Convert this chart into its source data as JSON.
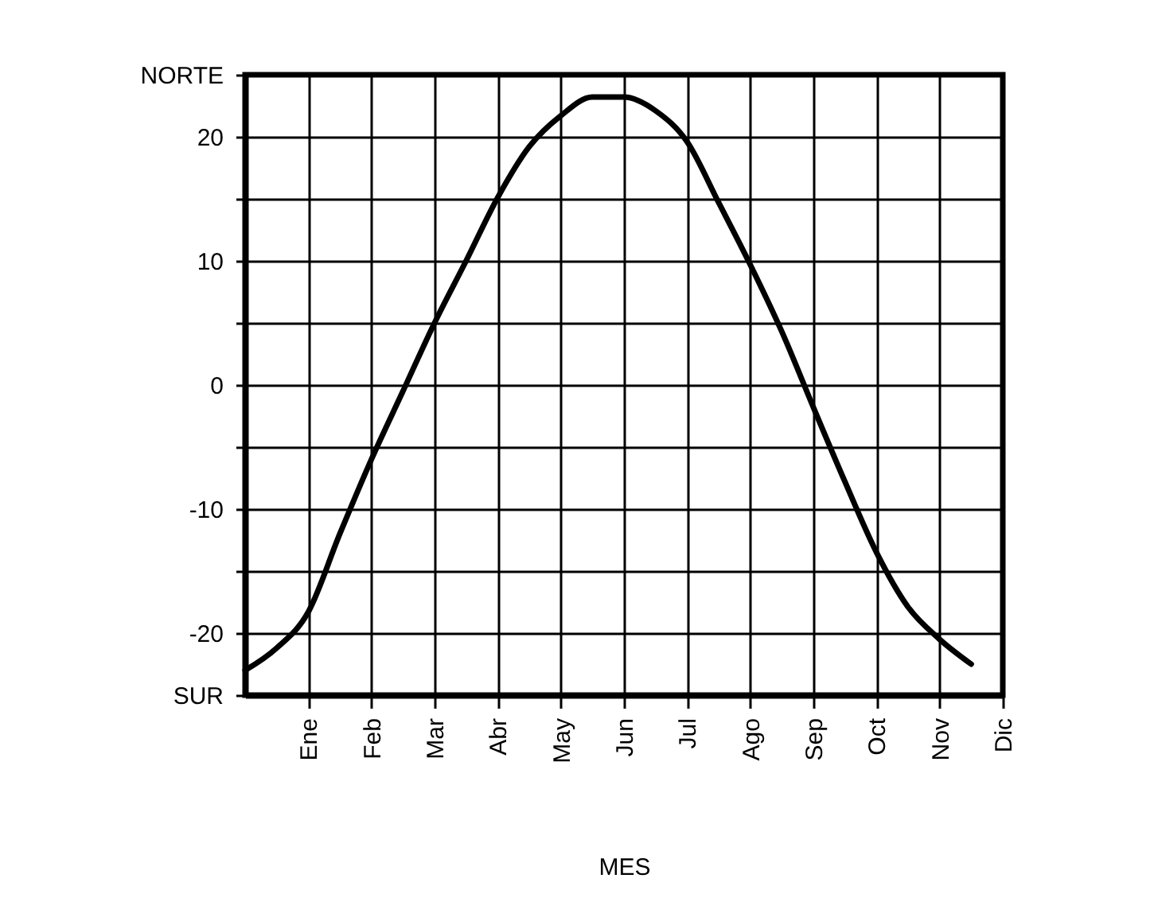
{
  "chart_data": {
    "type": "line",
    "xlabel": "MES",
    "categories": [
      null,
      null,
      "Ene",
      null,
      "Feb",
      null,
      "Mar",
      null,
      "Abr",
      null,
      "May",
      null,
      "Jun",
      null,
      "Jul",
      null,
      "Ago",
      null,
      "Sep",
      null,
      "Oct",
      null,
      "Nov",
      null,
      "Dic"
    ],
    "series": [
      {
        "color": "#000000",
        "values": [
          -23.0,
          -21.2,
          -18.3,
          -12.0,
          -6.0,
          -0.5,
          5.0,
          10.0,
          15.1,
          19.2,
          21.7,
          23.2,
          23.2,
          22.1,
          19.6,
          14.7,
          9.7,
          4.3,
          -1.8,
          -7.8,
          -13.5,
          -17.9,
          -20.5,
          -22.5,
          null
        ]
      }
    ],
    "ylim": [
      -25,
      25
    ],
    "yticks": [
      {
        "value": -25,
        "label": "SUR"
      },
      {
        "value": -20,
        "label": "-20"
      },
      {
        "value": -15,
        "label": null
      },
      {
        "value": -10,
        "label": "-10"
      },
      {
        "value": -5,
        "label": null
      },
      {
        "value": 0,
        "label": "0"
      },
      {
        "value": 5,
        "label": null
      },
      {
        "value": 10,
        "label": "10"
      },
      {
        "value": 15,
        "label": null
      },
      {
        "value": 20,
        "label": "20"
      },
      {
        "value": 25,
        "label": "NORTE"
      }
    ],
    "grid": true,
    "line_style": "solid"
  }
}
